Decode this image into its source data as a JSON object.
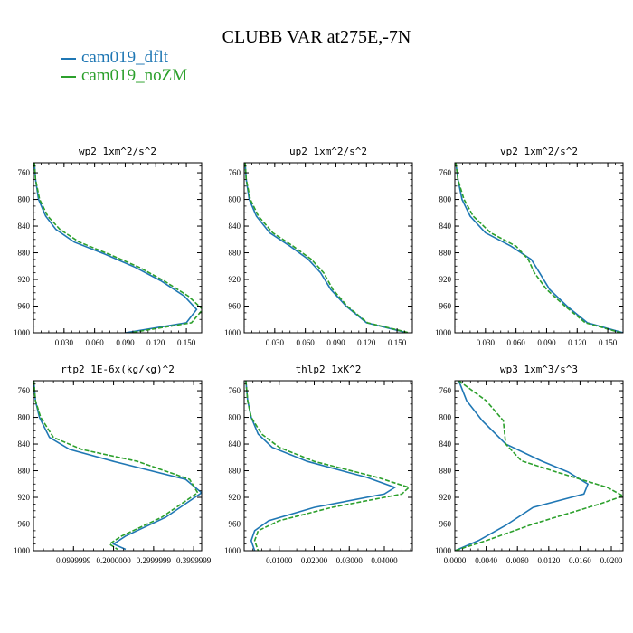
{
  "title": "CLUBB VAR at275E,-7N",
  "colors": {
    "dflt": "#1f77b4",
    "noZM": "#2ca02c",
    "axis": "#000000"
  },
  "legend": [
    {
      "name": "cam019_dflt",
      "color": "#1f77b4",
      "dashed": false
    },
    {
      "name": "cam019_noZM",
      "color": "#2ca02c",
      "dashed": true
    }
  ],
  "chart_data": [
    {
      "type": "line",
      "title": "wp2  1xm^2/s^2",
      "xlim": [
        0.0,
        0.165
      ],
      "ylim": [
        1000,
        745
      ],
      "xticks": [
        "0.030",
        "0.060",
        "0.090",
        "0.120",
        "0.150"
      ],
      "xtick_values": [
        0.03,
        0.06,
        0.09,
        0.12,
        0.15
      ],
      "yticks": [
        "760",
        "800",
        "840",
        "880",
        "920",
        "960",
        "1000"
      ],
      "ytick_values": [
        760,
        800,
        840,
        880,
        920,
        960,
        1000
      ],
      "series": [
        {
          "name": "cam019_dflt",
          "x": [
            0.001,
            0.002,
            0.005,
            0.012,
            0.022,
            0.04,
            0.07,
            0.1,
            0.125,
            0.148,
            0.16,
            0.15,
            0.09
          ],
          "y": [
            745,
            770,
            800,
            825,
            845,
            864,
            882,
            902,
            922,
            945,
            965,
            985,
            1000
          ]
        },
        {
          "name": "cam019_noZM",
          "x": [
            0.001,
            0.002,
            0.006,
            0.014,
            0.026,
            0.045,
            0.074,
            0.104,
            0.128,
            0.152,
            0.166,
            0.155,
            0.095
          ],
          "y": [
            745,
            770,
            800,
            825,
            845,
            864,
            882,
            902,
            922,
            945,
            965,
            985,
            1000
          ]
        }
      ]
    },
    {
      "type": "line",
      "title": "up2  1xm^2/s^2",
      "xlim": [
        0.0,
        0.165
      ],
      "ylim": [
        1000,
        745
      ],
      "xticks": [
        "0.030",
        "0.060",
        "0.090",
        "0.120",
        "0.150"
      ],
      "xtick_values": [
        0.03,
        0.06,
        0.09,
        0.12,
        0.15
      ],
      "yticks": [
        "760",
        "800",
        "840",
        "880",
        "920",
        "960",
        "1000"
      ],
      "ytick_values": [
        760,
        800,
        840,
        880,
        920,
        960,
        1000
      ],
      "series": [
        {
          "name": "cam019_dflt",
          "x": [
            0.001,
            0.002,
            0.005,
            0.012,
            0.025,
            0.045,
            0.063,
            0.075,
            0.085,
            0.1,
            0.12,
            0.16
          ],
          "y": [
            745,
            770,
            800,
            825,
            850,
            870,
            890,
            910,
            935,
            960,
            985,
            1000
          ]
        },
        {
          "name": "cam019_noZM",
          "x": [
            0.001,
            0.002,
            0.006,
            0.014,
            0.028,
            0.048,
            0.066,
            0.078,
            0.087,
            0.101,
            0.121,
            0.162
          ],
          "y": [
            745,
            770,
            800,
            825,
            850,
            870,
            890,
            910,
            935,
            960,
            985,
            1000
          ]
        }
      ]
    },
    {
      "type": "line",
      "title": "vp2  1xm^2/s^2",
      "xlim": [
        0.0,
        0.165
      ],
      "ylim": [
        1000,
        745
      ],
      "xticks": [
        "0.030",
        "0.060",
        "0.090",
        "0.120",
        "0.150"
      ],
      "xtick_values": [
        0.03,
        0.06,
        0.09,
        0.12,
        0.15
      ],
      "yticks": [
        "760",
        "800",
        "840",
        "880",
        "920",
        "960",
        "1000"
      ],
      "ytick_values": [
        760,
        800,
        840,
        880,
        920,
        960,
        1000
      ],
      "series": [
        {
          "name": "cam019_dflt",
          "x": [
            0.001,
            0.003,
            0.007,
            0.015,
            0.03,
            0.055,
            0.075,
            0.083,
            0.093,
            0.11,
            0.13,
            0.165
          ],
          "y": [
            745,
            770,
            800,
            825,
            850,
            870,
            890,
            910,
            935,
            960,
            985,
            1000
          ]
        },
        {
          "name": "cam019_noZM",
          "x": [
            0.001,
            0.003,
            0.009,
            0.018,
            0.035,
            0.06,
            0.072,
            0.078,
            0.09,
            0.108,
            0.128,
            0.163
          ],
          "y": [
            745,
            770,
            800,
            825,
            850,
            870,
            890,
            910,
            935,
            960,
            985,
            1000
          ]
        }
      ]
    },
    {
      "type": "line",
      "title": "rtp2  1E-6x(kg/kg)^2",
      "xlim": [
        0.0,
        0.42
      ],
      "ylim": [
        1000,
        745
      ],
      "xticks": [
        "0.0999999",
        "0.2000000",
        "0.2999999",
        "0.3999999"
      ],
      "xtick_values": [
        0.1,
        0.2,
        0.3,
        0.4
      ],
      "yticks": [
        "760",
        "800",
        "840",
        "880",
        "920",
        "960",
        "1000"
      ],
      "ytick_values": [
        760,
        800,
        840,
        880,
        920,
        960,
        1000
      ],
      "series": [
        {
          "name": "cam019_dflt",
          "x": [
            0.001,
            0.005,
            0.015,
            0.04,
            0.09,
            0.2,
            0.38,
            0.42,
            0.33,
            0.23,
            0.2,
            0.23
          ],
          "y": [
            745,
            775,
            800,
            830,
            848,
            866,
            893,
            913,
            950,
            978,
            990,
            998
          ]
        },
        {
          "name": "cam019_noZM",
          "x": [
            0.001,
            0.005,
            0.018,
            0.05,
            0.12,
            0.26,
            0.39,
            0.41,
            0.32,
            0.22,
            0.19,
            0.21
          ],
          "y": [
            745,
            775,
            800,
            830,
            848,
            866,
            893,
            913,
            950,
            978,
            990,
            998
          ]
        }
      ]
    },
    {
      "type": "line",
      "title": "thlp2  1xK^2",
      "xlim": [
        0.0,
        0.048
      ],
      "ylim": [
        1000,
        745
      ],
      "xticks": [
        "0.01000",
        "0.02000",
        "0.03000",
        "0.04000"
      ],
      "xtick_values": [
        0.01,
        0.02,
        0.03,
        0.04
      ],
      "yticks": [
        "760",
        "800",
        "840",
        "880",
        "920",
        "960",
        "1000"
      ],
      "ytick_values": [
        760,
        800,
        840,
        880,
        920,
        960,
        1000
      ],
      "series": [
        {
          "name": "cam019_dflt",
          "x": [
            0.0005,
            0.001,
            0.002,
            0.004,
            0.008,
            0.018,
            0.035,
            0.043,
            0.04,
            0.02,
            0.007,
            0.003,
            0.002,
            0.003
          ],
          "y": [
            745,
            775,
            800,
            825,
            845,
            866,
            890,
            905,
            915,
            935,
            955,
            970,
            985,
            1000
          ]
        },
        {
          "name": "cam019_noZM",
          "x": [
            0.0005,
            0.001,
            0.002,
            0.005,
            0.01,
            0.02,
            0.038,
            0.047,
            0.045,
            0.025,
            0.01,
            0.004,
            0.003,
            0.004
          ],
          "y": [
            745,
            775,
            800,
            825,
            845,
            866,
            890,
            905,
            915,
            935,
            955,
            970,
            985,
            1000
          ]
        }
      ]
    },
    {
      "type": "line",
      "title": "wp3  1xm^3/s^3",
      "xlim": [
        0.0,
        0.0215
      ],
      "ylim": [
        1000,
        745
      ],
      "xticks": [
        "0.0000",
        "0.0040",
        "0.0080",
        "0.0120",
        "0.0160",
        "0.0200"
      ],
      "xtick_values": [
        0.0,
        0.004,
        0.008,
        0.012,
        0.016,
        0.02
      ],
      "yticks": [
        "760",
        "800",
        "840",
        "880",
        "920",
        "960",
        "1000"
      ],
      "ytick_values": [
        760,
        800,
        840,
        880,
        920,
        960,
        1000
      ],
      "series": [
        {
          "name": "cam019_dflt",
          "x": [
            0.0005,
            0.0015,
            0.0035,
            0.0065,
            0.011,
            0.0145,
            0.017,
            0.0165,
            0.01,
            0.0065,
            0.003,
            0.0
          ],
          "y": [
            745,
            775,
            805,
            840,
            865,
            882,
            900,
            915,
            935,
            962,
            985,
            1000
          ]
        },
        {
          "name": "cam019_noZM",
          "x": [
            0.0005,
            0.004,
            0.0062,
            0.0065,
            0.0085,
            0.013,
            0.0195,
            0.0215,
            0.0185,
            0.01,
            0.004,
            0.0
          ],
          "y": [
            745,
            775,
            805,
            840,
            865,
            882,
            905,
            918,
            930,
            960,
            985,
            1000
          ]
        }
      ]
    }
  ]
}
